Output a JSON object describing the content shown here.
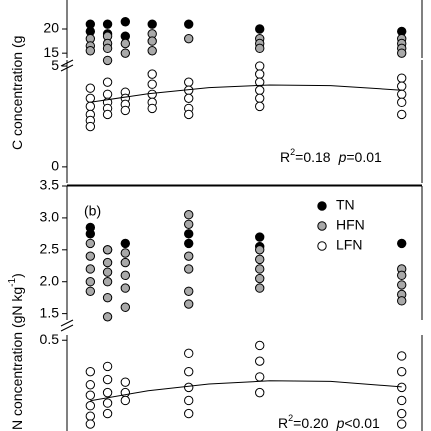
{
  "chart_data": [
    {
      "type": "scatter",
      "xlim": [
        0,
        35
      ],
      "ylim": [
        14,
        26
      ],
      "yticks": [
        15,
        20
      ],
      "series": [
        {
          "color": "#000000",
          "x": [
            2.3,
            2.3,
            4,
            4,
            5.75,
            5.75,
            8.4,
            12,
            19,
            33
          ],
          "values": [
            21,
            19.5,
            21,
            19,
            21.5,
            18.5,
            21,
            21,
            20,
            19.5
          ]
        },
        {
          "color": "#a9a9a9",
          "x": [
            2.3,
            2.3,
            2.3,
            4,
            4,
            4,
            4,
            5.75,
            5.75,
            8.4,
            8.4,
            8.4,
            12,
            19,
            19,
            19,
            33,
            33,
            33,
            33
          ],
          "values": [
            18,
            16.5,
            15.5,
            18.5,
            17,
            16,
            13.5,
            17,
            15,
            19,
            17.5,
            15.5,
            18,
            18,
            17,
            16,
            18,
            17,
            16,
            15
          ]
        }
      ]
    },
    {
      "type": "scatter",
      "xlim": [
        0,
        35
      ],
      "ylim": [
        -0.8,
        5.3
      ],
      "yticks": [
        0,
        5
      ],
      "ylabel": [
        "C concentration (g"
      ],
      "annotation": [
        "R",
        "2",
        "=0.18",
        "p",
        "=0.01"
      ],
      "series": [
        {
          "color": "#ffffff",
          "x": [
            2.3,
            2.3,
            2.3,
            2.3,
            2.3,
            2.3,
            4,
            4,
            4,
            4,
            4,
            5.75,
            5.75,
            5.75,
            5.75,
            8.4,
            8.4,
            8.4,
            8.4,
            8.4,
            12,
            12,
            12,
            12,
            12,
            19,
            19,
            19,
            19,
            19,
            19,
            33,
            33,
            33,
            33,
            33
          ],
          "values": [
            3.9,
            3.4,
            3.0,
            2.6,
            2.3,
            2.0,
            4.2,
            3.6,
            3.2,
            2.9,
            2.6,
            3.7,
            3.4,
            3.1,
            2.8,
            4.6,
            4.1,
            3.6,
            3.2,
            2.9,
            4.2,
            3.8,
            3.4,
            2.9,
            2.6,
            5.0,
            4.6,
            4.2,
            3.8,
            3.4,
            3.0,
            4.4,
            4.0,
            3.6,
            3.2,
            2.6
          ]
        },
        {
          "type": "line",
          "color": "#000000",
          "x": [
            2.3,
            8,
            14,
            20,
            26,
            33
          ],
          "values": [
            3.2,
            3.63,
            3.93,
            4.06,
            4.03,
            3.8
          ]
        }
      ]
    },
    {
      "type": "scatter",
      "xlim": [
        0,
        35
      ],
      "ylim": [
        1.4,
        3.5
      ],
      "yticks": [
        1.5,
        {
          "value": 2.0,
          "label": "2.0"
        },
        2.5,
        {
          "value": 3.0,
          "label": "3.0"
        },
        3.5
      ],
      "panel_label": "(b)",
      "legend": "upper right",
      "series": [
        {
          "name": "TN",
          "color": "#000000",
          "x": [
            2.3,
            2.3,
            4,
            5.75,
            12,
            12,
            19,
            19,
            33
          ],
          "values": [
            2.85,
            2.75,
            2.5,
            2.6,
            2.75,
            2.6,
            2.7,
            2.55,
            2.6
          ]
        },
        {
          "name": "HFN",
          "color": "#a9a9a9",
          "x": [
            2.3,
            2.3,
            2.3,
            2.3,
            2.3,
            4,
            4,
            4,
            4,
            4,
            4,
            5.75,
            5.75,
            5.75,
            5.75,
            5.75,
            12,
            12,
            12,
            12,
            12,
            12,
            19,
            19,
            19,
            19,
            19,
            33,
            33,
            33,
            33,
            33
          ],
          "values": [
            2.6,
            2.4,
            2.2,
            2.0,
            1.85,
            2.5,
            2.3,
            2.15,
            2.0,
            1.75,
            1.45,
            2.45,
            2.3,
            2.1,
            1.9,
            1.6,
            3.05,
            2.9,
            2.4,
            2.2,
            1.85,
            1.65,
            2.5,
            2.35,
            2.2,
            2.05,
            1.9,
            2.2,
            2.1,
            1.95,
            1.8,
            1.7
          ]
        }
      ]
    },
    {
      "type": "scatter",
      "xlim": [
        0,
        35
      ],
      "ylim": [
        0.1,
        0.52
      ],
      "yticks": [
        0.5
      ],
      "ylabel": [
        "N concentration (gN kg",
        "-1",
        ")"
      ],
      "annotation": [
        "R",
        "2",
        "=0.20",
        "p",
        "<0.01"
      ],
      "series": [
        {
          "name": "LFN",
          "color": "#ffffff",
          "x": [
            2.3,
            2.3,
            2.3,
            2.3,
            2.3,
            2.3,
            4,
            4,
            4,
            4,
            4,
            5.75,
            5.75,
            5.75,
            12,
            12,
            12,
            12,
            12,
            19,
            19,
            19,
            19,
            33,
            33,
            33,
            33,
            33,
            33
          ],
          "values": [
            0.38,
            0.33,
            0.29,
            0.25,
            0.21,
            0.18,
            0.4,
            0.35,
            0.3,
            0.26,
            0.22,
            0.34,
            0.3,
            0.27,
            0.45,
            0.38,
            0.32,
            0.27,
            0.22,
            0.48,
            0.42,
            0.36,
            0.3,
            0.44,
            0.38,
            0.32,
            0.27,
            0.22,
            0.18
          ]
        },
        {
          "type": "line",
          "color": "#000000",
          "x": [
            2.3,
            8,
            14,
            20,
            26,
            33
          ],
          "values": [
            0.269,
            0.307,
            0.333,
            0.345,
            0.343,
            0.322
          ]
        }
      ]
    }
  ]
}
